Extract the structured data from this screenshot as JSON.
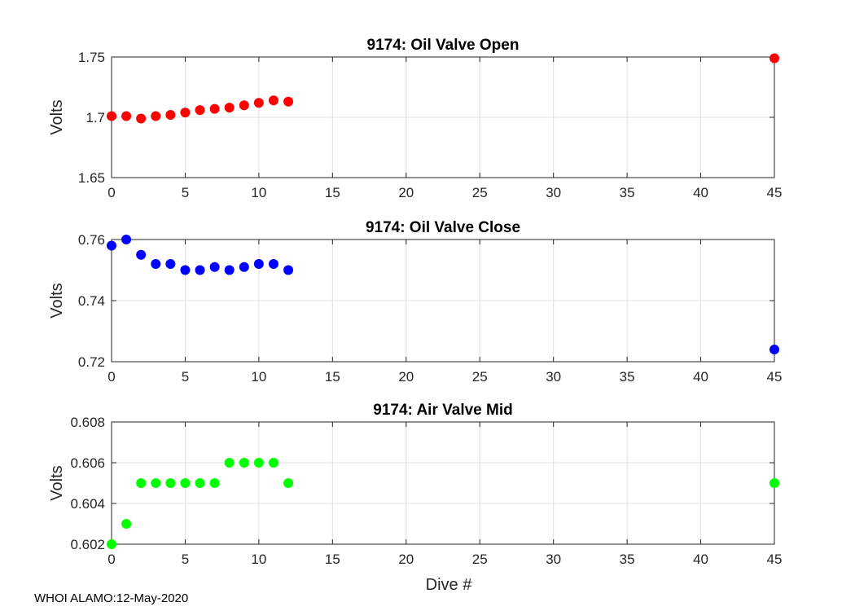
{
  "chart_data": [
    {
      "type": "scatter",
      "title": "9174: Oil Valve Open",
      "ylabel": "Volts",
      "xlabel": "",
      "xlim": [
        0,
        45
      ],
      "ylim": [
        1.65,
        1.75
      ],
      "xticks": [
        0,
        5,
        10,
        15,
        20,
        25,
        30,
        35,
        40,
        45
      ],
      "yticks": [
        1.65,
        1.7,
        1.75
      ],
      "ytick_labels": [
        "1.65",
        "1.7",
        "1.75"
      ],
      "grid": true,
      "color": "#ff0000",
      "x": [
        0,
        1,
        2,
        3,
        4,
        5,
        6,
        7,
        8,
        9,
        10,
        11,
        12,
        45
      ],
      "y": [
        1.701,
        1.701,
        1.699,
        1.701,
        1.702,
        1.704,
        1.706,
        1.707,
        1.708,
        1.71,
        1.712,
        1.714,
        1.713,
        1.749
      ]
    },
    {
      "type": "scatter",
      "title": "9174: Oil Valve Close",
      "ylabel": "Volts",
      "xlabel": "",
      "xlim": [
        0,
        45
      ],
      "ylim": [
        0.72,
        0.76
      ],
      "xticks": [
        0,
        5,
        10,
        15,
        20,
        25,
        30,
        35,
        40,
        45
      ],
      "yticks": [
        0.72,
        0.74,
        0.76
      ],
      "ytick_labels": [
        "0.72",
        "0.74",
        "0.76"
      ],
      "grid": true,
      "color": "#0000ff",
      "x": [
        0,
        1,
        2,
        3,
        4,
        5,
        6,
        7,
        8,
        9,
        10,
        11,
        12,
        45
      ],
      "y": [
        0.758,
        0.76,
        0.755,
        0.752,
        0.752,
        0.75,
        0.75,
        0.751,
        0.75,
        0.751,
        0.752,
        0.752,
        0.75,
        0.724
      ]
    },
    {
      "type": "scatter",
      "title": "9174: Air Valve Mid",
      "ylabel": "Volts",
      "xlabel": "Dive #",
      "xlim": [
        0,
        45
      ],
      "ylim": [
        0.602,
        0.608
      ],
      "xticks": [
        0,
        5,
        10,
        15,
        20,
        25,
        30,
        35,
        40,
        45
      ],
      "yticks": [
        0.602,
        0.604,
        0.606,
        0.608
      ],
      "ytick_labels": [
        "0.602",
        "0.604",
        "0.606",
        "0.608"
      ],
      "grid": true,
      "color": "#00ff00",
      "x": [
        0,
        1,
        2,
        3,
        4,
        5,
        6,
        7,
        8,
        9,
        10,
        11,
        12,
        45
      ],
      "y": [
        0.602,
        0.603,
        0.605,
        0.605,
        0.605,
        0.605,
        0.605,
        0.605,
        0.606,
        0.606,
        0.606,
        0.606,
        0.605,
        0.605
      ]
    }
  ],
  "footer": "WHOI ALAMO:12-May-2020"
}
